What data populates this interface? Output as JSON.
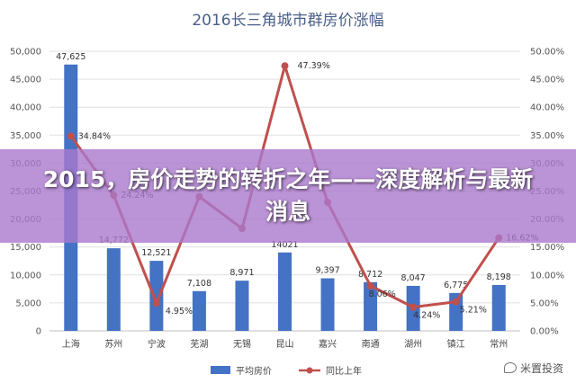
{
  "chart_data": {
    "type": "bar+line",
    "title": "2016长三角城市群房价涨幅",
    "categories": [
      "上海",
      "苏州",
      "宁波",
      "芜湖",
      "无锡",
      "昆山",
      "嘉兴",
      "南通",
      "湖州",
      "镇江",
      "常州"
    ],
    "series": [
      {
        "name": "平均房价",
        "type": "bar",
        "axis": "left",
        "values": [
          47625,
          14772,
          12521,
          7108,
          8971,
          14021,
          9397,
          8712,
          8047,
          6775,
          8198
        ],
        "labels": [
          "47,625",
          "14,772",
          "12,521",
          "7,108",
          "8,971",
          "14021",
          "9,397",
          "8,712",
          "8,047",
          "6,775",
          "8,198"
        ]
      },
      {
        "name": "同比上年",
        "type": "line",
        "axis": "right",
        "values": [
          34.84,
          24.24,
          4.95,
          null,
          null,
          47.39,
          null,
          8.06,
          4.24,
          5.21,
          16.62
        ],
        "labels": [
          "34.84%",
          "24.24%",
          "4.95%",
          "",
          "",
          "47.39%",
          "",
          "8.06%",
          "4.24%",
          "5.21%",
          "16.62%"
        ]
      }
    ],
    "hidden_line_values": [
      null,
      null,
      null,
      24.0,
      18.3,
      null,
      23.0,
      null,
      null,
      null,
      null
    ],
    "left_axis": {
      "ticks": [
        "0",
        "5,000",
        "10,000",
        "15,000",
        "20,000",
        "25,000",
        "30,000",
        "35,000",
        "40,000",
        "45,000",
        "50,000"
      ],
      "ylim": [
        0,
        50000
      ]
    },
    "right_axis": {
      "ticks": [
        "0.00%",
        "5.00%",
        "10.00%",
        "15.00%",
        "20.00%",
        "25.00%",
        "30.00%",
        "35.00%",
        "40.00%",
        "45.00%",
        "50.00%"
      ],
      "ylim": [
        0,
        50
      ]
    },
    "grid": true,
    "legend": "bottom",
    "colors": {
      "bar": "#4472c4",
      "line": "#c0504d",
      "title": "#4a5f8a"
    }
  },
  "overlay": {
    "text": "2015，房价走势的转折之年——深度解析与最新消息",
    "color": "#aa78cd"
  },
  "watermark": {
    "text": "米置投资"
  }
}
